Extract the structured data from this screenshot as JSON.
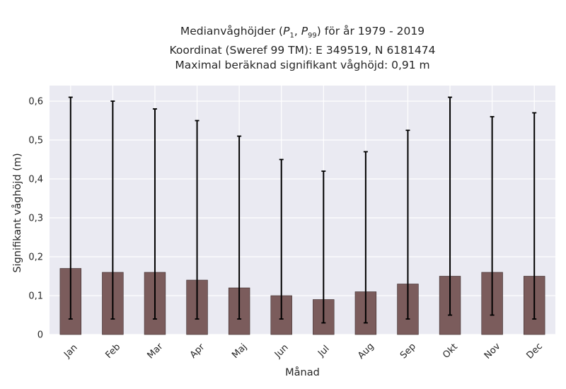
{
  "chart_data": {
    "type": "bar",
    "title_lines": [
      "Medianvåghöjder (P1, P99) för år 1979 - 2019",
      "Koordinat (Sweref 99 TM): E 349519, N 6181474",
      "Maximal beräknad signifikant våghöjd: 0,91 m"
    ],
    "xlabel": "Månad",
    "ylabel": "Signifikant våghöjd (m)",
    "categories": [
      "Jan",
      "Feb",
      "Mar",
      "Apr",
      "Maj",
      "Jun",
      "Jul",
      "Aug",
      "Sep",
      "Okt",
      "Nov",
      "Dec"
    ],
    "values": [
      0.17,
      0.16,
      0.16,
      0.14,
      0.12,
      0.1,
      0.09,
      0.11,
      0.13,
      0.15,
      0.16,
      0.15
    ],
    "p1": [
      0.04,
      0.04,
      0.04,
      0.04,
      0.04,
      0.04,
      0.03,
      0.03,
      0.04,
      0.05,
      0.05,
      0.04
    ],
    "p99": [
      0.61,
      0.6,
      0.58,
      0.55,
      0.51,
      0.45,
      0.42,
      0.47,
      0.525,
      0.61,
      0.56,
      0.57
    ],
    "ylim": [
      0,
      0.64
    ],
    "yticks": [
      0,
      0.1,
      0.2,
      0.3,
      0.4,
      0.5,
      0.6
    ],
    "ytick_labels": [
      "0",
      "0,1",
      "0,2",
      "0,3",
      "0,4",
      "0,5",
      "0,6"
    ],
    "grid": true,
    "colors": {
      "bar": "#7b5c5c",
      "bar_edge": "#3a2a2a",
      "errorbar": "#000000",
      "plot_bg": "#eaeaf2",
      "grid": "#ffffff"
    }
  }
}
